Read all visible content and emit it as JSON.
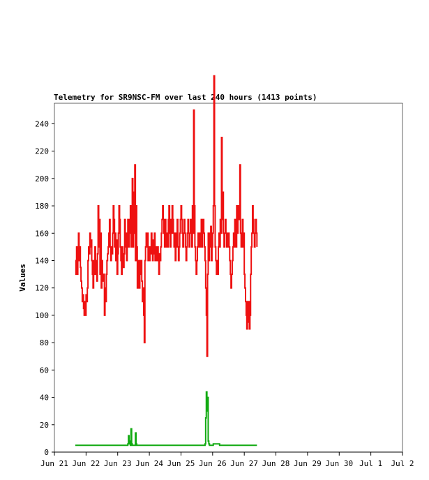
{
  "chart_data": {
    "type": "line",
    "title": "Telemetry for SR9NSC-FM over last 240 hours (1413 points)",
    "xlabel": "",
    "ylabel": "Values",
    "x_ticks": [
      {
        "label": "Jun 21",
        "day": 0
      },
      {
        "label": "Jun 22",
        "day": 1
      },
      {
        "label": "Jun 23",
        "day": 2
      },
      {
        "label": "Jun 24",
        "day": 3
      },
      {
        "label": "Jun 25",
        "day": 4
      },
      {
        "label": "Jun 26",
        "day": 5
      },
      {
        "label": "Jun 27",
        "day": 6
      },
      {
        "label": "Jun 28",
        "day": 7
      },
      {
        "label": "Jun 29",
        "day": 8
      },
      {
        "label": "Jun 30",
        "day": 9
      },
      {
        "label": "Jul 1",
        "day": 10
      },
      {
        "label": "Jul 2",
        "day": 11
      }
    ],
    "y_ticks": [
      0,
      20,
      40,
      60,
      80,
      100,
      120,
      140,
      160,
      180,
      200,
      220,
      240
    ],
    "xlim": [
      0,
      11
    ],
    "ylim": [
      0,
      255
    ],
    "grid": false,
    "series": [
      {
        "color": "#ee1111",
        "points": [
          [
            0.66,
            140
          ],
          [
            0.68,
            130
          ],
          [
            0.7,
            150
          ],
          [
            0.72,
            130
          ],
          [
            0.74,
            145
          ],
          [
            0.76,
            160
          ],
          [
            0.78,
            140
          ],
          [
            0.8,
            150
          ],
          [
            0.82,
            135
          ],
          [
            0.84,
            125
          ],
          [
            0.86,
            120
          ],
          [
            0.88,
            110
          ],
          [
            0.9,
            115
          ],
          [
            0.92,
            105
          ],
          [
            0.94,
            100
          ],
          [
            0.96,
            110
          ],
          [
            0.98,
            100
          ],
          [
            1.0,
            115
          ],
          [
            1.02,
            110
          ],
          [
            1.04,
            120
          ],
          [
            1.06,
            140
          ],
          [
            1.08,
            150
          ],
          [
            1.1,
            145
          ],
          [
            1.12,
            160
          ],
          [
            1.14,
            150
          ],
          [
            1.16,
            155
          ],
          [
            1.18,
            140
          ],
          [
            1.2,
            130
          ],
          [
            1.22,
            120
          ],
          [
            1.24,
            140
          ],
          [
            1.26,
            130
          ],
          [
            1.28,
            150
          ],
          [
            1.3,
            140
          ],
          [
            1.32,
            130
          ],
          [
            1.34,
            125
          ],
          [
            1.36,
            145
          ],
          [
            1.38,
            180
          ],
          [
            1.4,
            150
          ],
          [
            1.42,
            170
          ],
          [
            1.44,
            130
          ],
          [
            1.46,
            160
          ],
          [
            1.48,
            120
          ],
          [
            1.5,
            140
          ],
          [
            1.52,
            130
          ],
          [
            1.54,
            125
          ],
          [
            1.56,
            130
          ],
          [
            1.58,
            100
          ],
          [
            1.6,
            120
          ],
          [
            1.62,
            110
          ],
          [
            1.64,
            130
          ],
          [
            1.66,
            140
          ],
          [
            1.68,
            145
          ],
          [
            1.7,
            150
          ],
          [
            1.72,
            160
          ],
          [
            1.74,
            170
          ],
          [
            1.76,
            150
          ],
          [
            1.78,
            140
          ],
          [
            1.8,
            150
          ],
          [
            1.82,
            145
          ],
          [
            1.84,
            160
          ],
          [
            1.86,
            180
          ],
          [
            1.88,
            170
          ],
          [
            1.9,
            150
          ],
          [
            1.92,
            160
          ],
          [
            1.94,
            140
          ],
          [
            1.96,
            155
          ],
          [
            1.98,
            130
          ],
          [
            2.0,
            145
          ],
          [
            2.02,
            160
          ],
          [
            2.04,
            180
          ],
          [
            2.06,
            170
          ],
          [
            2.08,
            150
          ],
          [
            2.1,
            140
          ],
          [
            2.12,
            130
          ],
          [
            2.14,
            150
          ],
          [
            2.16,
            140
          ],
          [
            2.18,
            135
          ],
          [
            2.2,
            145
          ],
          [
            2.22,
            170
          ],
          [
            2.24,
            150
          ],
          [
            2.26,
            160
          ],
          [
            2.28,
            140
          ],
          [
            2.3,
            150
          ],
          [
            2.32,
            170
          ],
          [
            2.34,
            150
          ],
          [
            2.36,
            160
          ],
          [
            2.38,
            170
          ],
          [
            2.4,
            180
          ],
          [
            2.42,
            150
          ],
          [
            2.44,
            160
          ],
          [
            2.46,
            200
          ],
          [
            2.48,
            150
          ],
          [
            2.5,
            190
          ],
          [
            2.52,
            160
          ],
          [
            2.54,
            210
          ],
          [
            2.56,
            140
          ],
          [
            2.58,
            180
          ],
          [
            2.6,
            150
          ],
          [
            2.62,
            120
          ],
          [
            2.64,
            140
          ],
          [
            2.66,
            130
          ],
          [
            2.68,
            120
          ],
          [
            2.7,
            140
          ],
          [
            2.72,
            130
          ],
          [
            2.74,
            140
          ],
          [
            2.76,
            125
          ],
          [
            2.78,
            110
          ],
          [
            2.8,
            120
          ],
          [
            2.82,
            100
          ],
          [
            2.84,
            80
          ],
          [
            2.86,
            140
          ],
          [
            2.88,
            150
          ],
          [
            2.9,
            160
          ],
          [
            2.92,
            150
          ],
          [
            2.94,
            160
          ],
          [
            2.96,
            140
          ],
          [
            2.98,
            150
          ],
          [
            3.0,
            140
          ],
          [
            3.02,
            150
          ],
          [
            3.04,
            145
          ],
          [
            3.06,
            160
          ],
          [
            3.08,
            150
          ],
          [
            3.1,
            140
          ],
          [
            3.12,
            155
          ],
          [
            3.14,
            145
          ],
          [
            3.16,
            160
          ],
          [
            3.18,
            140
          ],
          [
            3.2,
            150
          ],
          [
            3.22,
            145
          ],
          [
            3.24,
            140
          ],
          [
            3.26,
            150
          ],
          [
            3.28,
            140
          ],
          [
            3.3,
            130
          ],
          [
            3.32,
            145
          ],
          [
            3.34,
            140
          ],
          [
            3.36,
            150
          ],
          [
            3.38,
            160
          ],
          [
            3.4,
            170
          ],
          [
            3.42,
            180
          ],
          [
            3.44,
            170
          ],
          [
            3.46,
            160
          ],
          [
            3.48,
            150
          ],
          [
            3.5,
            170
          ],
          [
            3.52,
            160
          ],
          [
            3.54,
            150
          ],
          [
            3.56,
            160
          ],
          [
            3.58,
            150
          ],
          [
            3.6,
            170
          ],
          [
            3.62,
            180
          ],
          [
            3.64,
            160
          ],
          [
            3.66,
            150
          ],
          [
            3.68,
            170
          ],
          [
            3.7,
            160
          ],
          [
            3.72,
            180
          ],
          [
            3.74,
            170
          ],
          [
            3.76,
            160
          ],
          [
            3.78,
            150
          ],
          [
            3.8,
            160
          ],
          [
            3.82,
            140
          ],
          [
            3.84,
            150
          ],
          [
            3.86,
            160
          ],
          [
            3.88,
            170
          ],
          [
            3.9,
            150
          ],
          [
            3.92,
            140
          ],
          [
            3.94,
            150
          ],
          [
            3.96,
            160
          ],
          [
            3.98,
            170
          ],
          [
            4.0,
            180
          ],
          [
            4.02,
            170
          ],
          [
            4.04,
            160
          ],
          [
            4.06,
            150
          ],
          [
            4.08,
            160
          ],
          [
            4.1,
            170
          ],
          [
            4.12,
            160
          ],
          [
            4.14,
            150
          ],
          [
            4.16,
            140
          ],
          [
            4.18,
            150
          ],
          [
            4.2,
            160
          ],
          [
            4.22,
            170
          ],
          [
            4.24,
            160
          ],
          [
            4.26,
            150
          ],
          [
            4.28,
            160
          ],
          [
            4.3,
            170
          ],
          [
            4.32,
            160
          ],
          [
            4.34,
            150
          ],
          [
            4.36,
            180
          ],
          [
            4.38,
            160
          ],
          [
            4.4,
            250
          ],
          [
            4.42,
            180
          ],
          [
            4.44,
            150
          ],
          [
            4.46,
            140
          ],
          [
            4.48,
            130
          ],
          [
            4.5,
            140
          ],
          [
            4.52,
            150
          ],
          [
            4.54,
            160
          ],
          [
            4.56,
            150
          ],
          [
            4.58,
            160
          ],
          [
            4.6,
            150
          ],
          [
            4.62,
            160
          ],
          [
            4.64,
            170
          ],
          [
            4.66,
            150
          ],
          [
            4.68,
            160
          ],
          [
            4.7,
            170
          ],
          [
            4.72,
            160
          ],
          [
            4.74,
            150
          ],
          [
            4.76,
            140
          ],
          [
            4.78,
            120
          ],
          [
            4.8,
            100
          ],
          [
            4.82,
            70
          ],
          [
            4.84,
            130
          ],
          [
            4.86,
            160
          ],
          [
            4.88,
            140
          ],
          [
            4.9,
            160
          ],
          [
            4.92,
            150
          ],
          [
            4.94,
            165
          ],
          [
            4.96,
            140
          ],
          [
            4.98,
            150
          ],
          [
            5.0,
            160
          ],
          [
            5.02,
            180
          ],
          [
            5.04,
            275
          ],
          [
            5.06,
            180
          ],
          [
            5.08,
            150
          ],
          [
            5.1,
            140
          ],
          [
            5.12,
            130
          ],
          [
            5.14,
            140
          ],
          [
            5.16,
            130
          ],
          [
            5.18,
            150
          ],
          [
            5.2,
            160
          ],
          [
            5.22,
            150
          ],
          [
            5.24,
            170
          ],
          [
            5.26,
            160
          ],
          [
            5.28,
            230
          ],
          [
            5.3,
            170
          ],
          [
            5.32,
            190
          ],
          [
            5.34,
            160
          ],
          [
            5.36,
            150
          ],
          [
            5.38,
            160
          ],
          [
            5.4,
            170
          ],
          [
            5.42,
            160
          ],
          [
            5.44,
            150
          ],
          [
            5.46,
            160
          ],
          [
            5.48,
            150
          ],
          [
            5.5,
            160
          ],
          [
            5.52,
            150
          ],
          [
            5.54,
            140
          ],
          [
            5.56,
            130
          ],
          [
            5.58,
            120
          ],
          [
            5.6,
            130
          ],
          [
            5.62,
            140
          ],
          [
            5.64,
            150
          ],
          [
            5.66,
            160
          ],
          [
            5.68,
            150
          ],
          [
            5.7,
            170
          ],
          [
            5.72,
            160
          ],
          [
            5.74,
            150
          ],
          [
            5.76,
            180
          ],
          [
            5.78,
            160
          ],
          [
            5.8,
            170
          ],
          [
            5.82,
            180
          ],
          [
            5.84,
            170
          ],
          [
            5.86,
            210
          ],
          [
            5.88,
            160
          ],
          [
            5.9,
            150
          ],
          [
            5.92,
            160
          ],
          [
            5.94,
            170
          ],
          [
            5.96,
            150
          ],
          [
            5.98,
            160
          ],
          [
            6.0,
            130
          ],
          [
            6.02,
            120
          ],
          [
            6.04,
            110
          ],
          [
            6.06,
            100
          ],
          [
            6.08,
            90
          ],
          [
            6.1,
            110
          ],
          [
            6.12,
            95
          ],
          [
            6.14,
            110
          ],
          [
            6.16,
            90
          ],
          [
            6.18,
            100
          ],
          [
            6.2,
            130
          ],
          [
            6.22,
            150
          ],
          [
            6.24,
            160
          ],
          [
            6.26,
            180
          ],
          [
            6.28,
            170
          ],
          [
            6.3,
            160
          ],
          [
            6.32,
            150
          ],
          [
            6.34,
            160
          ],
          [
            6.36,
            170
          ],
          [
            6.38,
            160
          ],
          [
            6.4,
            150
          ]
        ]
      },
      {
        "color": "#11aa11",
        "points": [
          [
            0.66,
            5
          ],
          [
            2.3,
            5
          ],
          [
            2.32,
            6
          ],
          [
            2.34,
            12
          ],
          [
            2.36,
            8
          ],
          [
            2.38,
            6
          ],
          [
            2.4,
            5
          ],
          [
            2.42,
            17
          ],
          [
            2.44,
            6
          ],
          [
            2.46,
            5
          ],
          [
            2.54,
            5
          ],
          [
            2.56,
            14
          ],
          [
            2.58,
            6
          ],
          [
            2.6,
            5
          ],
          [
            4.74,
            5
          ],
          [
            4.76,
            6
          ],
          [
            4.78,
            25
          ],
          [
            4.8,
            44
          ],
          [
            4.82,
            30
          ],
          [
            4.84,
            40
          ],
          [
            4.86,
            8
          ],
          [
            4.88,
            6
          ],
          [
            4.9,
            5
          ],
          [
            5.0,
            5
          ],
          [
            5.02,
            6
          ],
          [
            5.2,
            6
          ],
          [
            5.22,
            5
          ],
          [
            6.4,
            5
          ]
        ]
      }
    ]
  }
}
